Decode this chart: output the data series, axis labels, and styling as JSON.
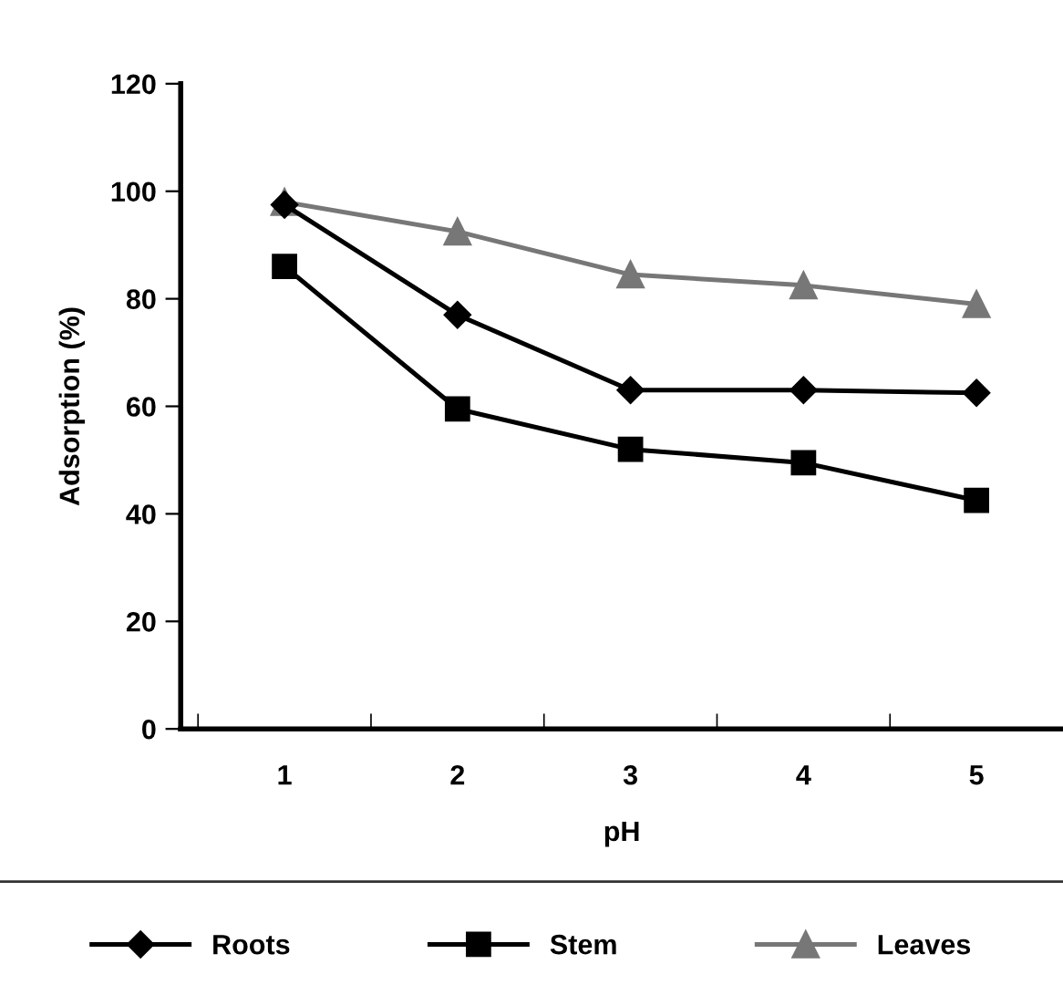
{
  "chart_data": {
    "type": "line",
    "xlabel": "pH",
    "ylabel": "Adsorption (%)",
    "categories": [
      "1",
      "2",
      "3",
      "4",
      "5"
    ],
    "series": [
      {
        "name": "Roots",
        "color": "#000000",
        "marker": "diamond",
        "values": [
          97.5,
          77,
          63,
          63,
          62.5
        ]
      },
      {
        "name": "Stem",
        "color": "#000000",
        "marker": "square",
        "values": [
          86,
          59.5,
          52,
          49.5,
          42.5
        ]
      },
      {
        "name": "Leaves",
        "color": "#777777",
        "marker": "triangle",
        "values": [
          98,
          92.5,
          84.5,
          82.5,
          79
        ]
      }
    ],
    "ylim": [
      0,
      120
    ],
    "yticks": [
      0,
      20,
      40,
      60,
      80,
      100,
      120
    ],
    "grid": false,
    "legend": "bottom"
  }
}
